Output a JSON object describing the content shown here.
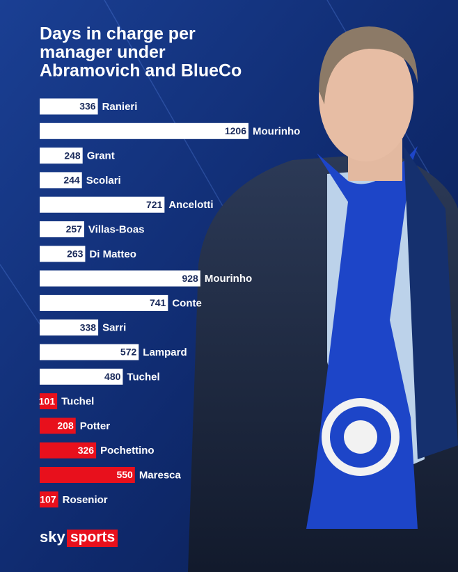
{
  "chart_data": {
    "type": "bar",
    "title_lines": [
      "Days in charge per",
      "manager under",
      "Abramovich and BlueCo"
    ],
    "categories": [
      "Ranieri",
      "Mourinho",
      "Grant",
      "Scolari",
      "Ancelotti",
      "Villas-Boas",
      "Di Matteo",
      "Mourinho",
      "Conte",
      "Sarri",
      "Lampard",
      "Tuchel",
      "Tuchel",
      "Potter",
      "Pochettino",
      "Maresca",
      "Rosenior"
    ],
    "values": [
      336,
      1206,
      248,
      244,
      721,
      257,
      263,
      928,
      741,
      338,
      572,
      480,
      101,
      208,
      326,
      550,
      107
    ],
    "colors": [
      "#ffffff",
      "#ffffff",
      "#ffffff",
      "#ffffff",
      "#ffffff",
      "#ffffff",
      "#ffffff",
      "#ffffff",
      "#ffffff",
      "#ffffff",
      "#ffffff",
      "#ffffff",
      "#e8101c",
      "#e8101c",
      "#e8101c",
      "#e8101c",
      "#e8101c"
    ]
  },
  "branding": {
    "sky": "sky",
    "sports": "sports"
  }
}
